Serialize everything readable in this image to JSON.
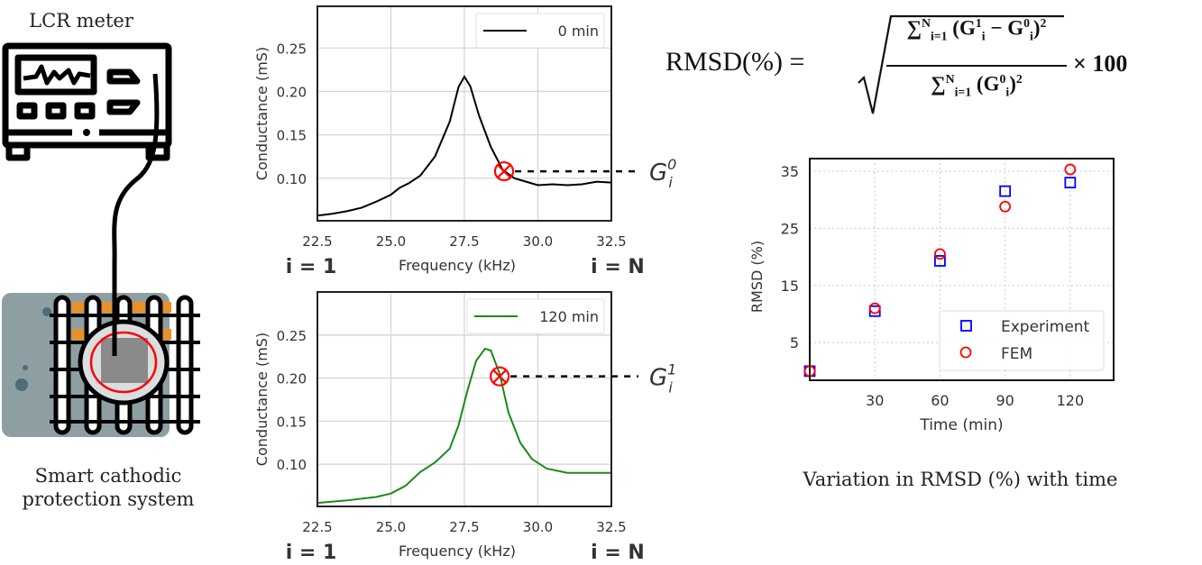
{
  "diagram": {
    "lcr_label": "LCR meter",
    "system_label": [
      "Smart cathodic",
      "protection system"
    ],
    "colors": {
      "grey_block": "#8e9fa3",
      "rebar_orange": "#e8912a",
      "sensor_ring": "#ff0000",
      "sensor_body": "#8a8a8a"
    }
  },
  "formula": {
    "lhs": "RMSD(%) =",
    "num_sum": "∑",
    "num_sum_sup": "N",
    "num_sum_sub": "i=1",
    "num_body": "(G",
    "num_g1_sup": "1",
    "num_g1_sub": "i",
    "num_minus": " − G",
    "num_g0_sup": "0",
    "num_g0_sub": "i",
    "num_close": ")",
    "num_sq": "2",
    "den_sum": "∑",
    "den_sum_sup": "N",
    "den_sum_sub": "i=1",
    "den_body": "(G",
    "den_g0_sup": "0",
    "den_g0_sub": "i",
    "den_close": ")",
    "den_sq": "2",
    "times": "× 100"
  },
  "caption": "Variation in RMSD (%) with time",
  "chart_data": [
    {
      "type": "line",
      "xlabel": "Frequency (kHz)",
      "ylabel": "Conductance (mS)",
      "xlim": [
        22.5,
        32.5
      ],
      "ylim": [
        0.051,
        0.298
      ],
      "xticks": [
        "22.5",
        "25.0",
        "27.5",
        "30.0",
        "32.5"
      ],
      "yticks": [
        "0.10",
        "0.15",
        "0.20",
        "0.25"
      ],
      "grid": true,
      "legend": "top-right",
      "index_labels": [
        "i = 1",
        "i = N"
      ],
      "series": [
        {
          "name": "0 min",
          "color": "#000000",
          "x": [
            22.5,
            23.0,
            23.5,
            24.0,
            24.5,
            25.0,
            25.3,
            25.6,
            26.0,
            26.5,
            27.0,
            27.3,
            27.5,
            27.7,
            28.0,
            28.4,
            28.8,
            29.2,
            29.6,
            30.0,
            30.5,
            31.0,
            31.5,
            32.0,
            32.5
          ],
          "y": [
            0.057,
            0.059,
            0.062,
            0.066,
            0.073,
            0.081,
            0.089,
            0.094,
            0.103,
            0.125,
            0.165,
            0.205,
            0.217,
            0.206,
            0.172,
            0.136,
            0.11,
            0.1,
            0.096,
            0.092,
            0.093,
            0.092,
            0.093,
            0.096,
            0.095
          ]
        }
      ],
      "marker": {
        "x": 28.85,
        "y": 0.108,
        "label": "G",
        "label_sub": "i",
        "label_sup": "0",
        "color": "#ff0000"
      }
    },
    {
      "type": "line",
      "xlabel": "Frequency (kHz)",
      "ylabel": "Conductance (mS)",
      "xlim": [
        22.5,
        32.5
      ],
      "ylim": [
        0.051,
        0.3
      ],
      "xticks": [
        "22.5",
        "25.0",
        "27.5",
        "30.0",
        "32.5"
      ],
      "yticks": [
        "0.10",
        "0.15",
        "0.20",
        "0.25"
      ],
      "grid": true,
      "legend": "top-right",
      "index_labels": [
        "i = 1",
        "i = N"
      ],
      "series": [
        {
          "name": "120 min",
          "color": "#1a8a1a",
          "x": [
            22.5,
            23.5,
            24.5,
            25.0,
            25.5,
            26.0,
            26.5,
            27.0,
            27.3,
            27.6,
            27.9,
            28.2,
            28.4,
            28.7,
            29.0,
            29.4,
            29.8,
            30.3,
            31.0,
            32.5
          ],
          "y": [
            0.055,
            0.058,
            0.062,
            0.066,
            0.075,
            0.091,
            0.102,
            0.118,
            0.145,
            0.185,
            0.22,
            0.234,
            0.232,
            0.205,
            0.16,
            0.125,
            0.106,
            0.095,
            0.09,
            0.09
          ]
        }
      ],
      "marker": {
        "x": 28.7,
        "y": 0.202,
        "label": "G",
        "label_sub": "i",
        "label_sup": "1",
        "color": "#ff0000"
      }
    },
    {
      "type": "scatter",
      "xlabel": "Time (min)",
      "ylabel": "RMSD (%)",
      "xlim": [
        0,
        140
      ],
      "ylim": [
        -1.6,
        37.2
      ],
      "xticks": [
        30,
        60,
        90,
        120
      ],
      "yticks": [
        5,
        15,
        25,
        35
      ],
      "grid": "dotted",
      "legend": "bottom-right",
      "series": [
        {
          "name": "Experiment",
          "marker": "square",
          "color": "#0000ff",
          "x": [
            0,
            30,
            60,
            90,
            120
          ],
          "y": [
            0,
            10.5,
            19.3,
            31.5,
            33.0
          ]
        },
        {
          "name": "FEM",
          "marker": "circle",
          "color": "#ff0000",
          "x": [
            0,
            30,
            60,
            90,
            120
          ],
          "y": [
            0,
            11.0,
            20.5,
            28.8,
            35.3
          ]
        }
      ]
    }
  ]
}
